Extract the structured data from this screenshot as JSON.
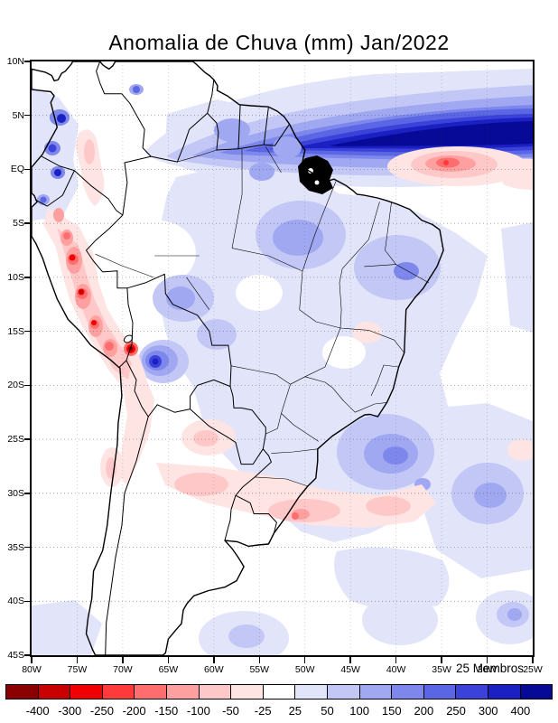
{
  "title": "Anomalia de Chuva (mm) Jan/2022",
  "annotation": "25 Membros",
  "axis": {
    "lat_ticks": [
      {
        "label": "10N",
        "deg": 10
      },
      {
        "label": "5N",
        "deg": 5
      },
      {
        "label": "EQ",
        "deg": 0
      },
      {
        "label": "5S",
        "deg": -5
      },
      {
        "label": "10S",
        "deg": -10
      },
      {
        "label": "15S",
        "deg": -15
      },
      {
        "label": "20S",
        "deg": -20
      },
      {
        "label": "25S",
        "deg": -25
      },
      {
        "label": "30S",
        "deg": -30
      },
      {
        "label": "35S",
        "deg": -35
      },
      {
        "label": "40S",
        "deg": -40
      },
      {
        "label": "45S",
        "deg": -45
      }
    ],
    "lon_ticks": [
      {
        "label": "80W",
        "deg": 80
      },
      {
        "label": "75W",
        "deg": 75
      },
      {
        "label": "70W",
        "deg": 70
      },
      {
        "label": "65W",
        "deg": 65
      },
      {
        "label": "60W",
        "deg": 60
      },
      {
        "label": "55W",
        "deg": 55
      },
      {
        "label": "50W",
        "deg": 50
      },
      {
        "label": "45W",
        "deg": 45
      },
      {
        "label": "40W",
        "deg": 40
      },
      {
        "label": "35W",
        "deg": 35
      },
      {
        "label": "30W",
        "deg": 30
      },
      {
        "label": "25W",
        "deg": 25
      }
    ]
  },
  "colorbar": {
    "labels": [
      "-400",
      "-300",
      "-250",
      "-200",
      "-150",
      "-100",
      "-50",
      "-25",
      "25",
      "50",
      "100",
      "150",
      "200",
      "250",
      "300",
      "400"
    ],
    "colors": [
      "#8b0000",
      "#c80000",
      "#f00000",
      "#ff3a3a",
      "#ff6e6e",
      "#ffa0a0",
      "#ffc8c8",
      "#ffe4e4",
      "#ffffff",
      "#e2e4fa",
      "#c2c7f6",
      "#a0a8f1",
      "#7e88ec",
      "#5b66e5",
      "#3a42da",
      "#1b20c2",
      "#070a96"
    ]
  },
  "chart_data": {
    "type": "filled_contour_map",
    "title": "Anomalia de Chuva (mm) Jan/2022",
    "region": "South America",
    "lat_range": [
      "45S",
      "10N"
    ],
    "lon_range": [
      "80W",
      "25W"
    ],
    "units": "mm",
    "contour_levels_mm": [
      -400,
      -300,
      -250,
      -200,
      -150,
      -100,
      -50,
      -25,
      25,
      50,
      100,
      150,
      200,
      250,
      300,
      400
    ],
    "ensemble_note": "25 Membros",
    "features": [
      "strong positive anomaly band (>400 mm core) over tropical North Atlantic near 5N, 55W-25W",
      "negative anomaly blob (-50 a -150 mm) over equatorial Atlantic near 40W-30W",
      "strong negative anomalies along Peruvian Andes with small cores beyond -300 mm (5S-17S)",
      "intense paired red/blue cores near Bolivia-Peru border (~17S, 69W-67W)",
      "weak positive anomalies (25-100 mm) over most of central, northern and eastern Brazil",
      "moderate positive patch (100-200 mm) over southeast Brazil coast near 20S-25S",
      "weak negative band (-25 a -100 mm) across southern Brazil, Uruguay, Paraguay and northern Argentina near 25S-33S",
      "positive anomaly spots along Pacific coast of Colombia and Ecuador",
      "weak positive anomalies over South Atlantic near 25S-35S"
    ]
  }
}
